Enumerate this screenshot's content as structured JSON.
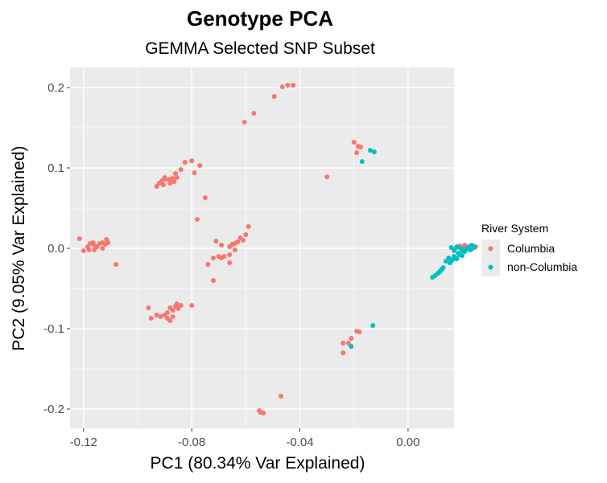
{
  "chart_data": {
    "type": "scatter",
    "title": "Genotype PCA",
    "subtitle": "GEMMA Selected SNP Subset",
    "xlabel": "PC1 (80.34% Var Explained)",
    "ylabel": "PC2 (9.05% Var Explained)",
    "xlim": [
      -0.125,
      0.017
    ],
    "ylim": [
      -0.224,
      0.225
    ],
    "x_ticks": [
      -0.12,
      -0.08,
      -0.04,
      0.0
    ],
    "x_tick_labels": [
      "-0.12",
      "-0.08",
      "-0.04",
      "0.00"
    ],
    "y_ticks": [
      -0.2,
      -0.1,
      0.0,
      0.1,
      0.2
    ],
    "y_tick_labels": [
      "-0.2",
      "-0.1",
      "0.0",
      "0.1",
      "0.2"
    ],
    "grid": true,
    "background": "#ebebeb",
    "legend": {
      "title": "River System",
      "placement": "right"
    },
    "series": [
      {
        "name": "Columbia",
        "color": "#F8766D",
        "points": [
          [
            -0.0445,
            0.203
          ],
          [
            -0.0425,
            0.203
          ],
          [
            -0.0465,
            0.201
          ],
          [
            -0.0495,
            0.189
          ],
          [
            -0.057,
            0.168
          ],
          [
            -0.0605,
            0.157
          ],
          [
            -0.02,
            0.132
          ],
          [
            -0.0185,
            0.127
          ],
          [
            -0.0175,
            0.126
          ],
          [
            -0.019,
            0.119
          ],
          [
            -0.03,
            0.089
          ],
          [
            -0.08,
            0.109
          ],
          [
            -0.0825,
            0.107
          ],
          [
            -0.077,
            0.103
          ],
          [
            -0.079,
            0.094
          ],
          [
            -0.084,
            0.098
          ],
          [
            -0.086,
            0.093
          ],
          [
            -0.0855,
            0.088
          ],
          [
            -0.087,
            0.087
          ],
          [
            -0.088,
            0.086
          ],
          [
            -0.0895,
            0.086
          ],
          [
            -0.091,
            0.084
          ],
          [
            -0.09,
            0.088
          ],
          [
            -0.092,
            0.081
          ],
          [
            -0.0905,
            0.079
          ],
          [
            -0.093,
            0.077
          ],
          [
            -0.088,
            0.081
          ],
          [
            -0.0865,
            0.083
          ],
          [
            -0.075,
            0.063
          ],
          [
            -0.078,
            0.036
          ],
          [
            -0.1215,
            0.012
          ],
          [
            -0.1185,
            0.002
          ],
          [
            -0.1175,
            0.006
          ],
          [
            -0.1165,
            0.007
          ],
          [
            -0.116,
            0.004
          ],
          [
            -0.115,
            0.002
          ],
          [
            -0.114,
            0.006
          ],
          [
            -0.113,
            0.007
          ],
          [
            -0.112,
            0.005
          ],
          [
            -0.111,
            0.007
          ],
          [
            -0.1115,
            0.011
          ],
          [
            -0.113,
            0.0
          ],
          [
            -0.116,
            -0.002
          ],
          [
            -0.118,
            -0.002
          ],
          [
            -0.12,
            -0.003
          ],
          [
            -0.108,
            -0.02
          ],
          [
            -0.059,
            0.027
          ],
          [
            -0.06,
            0.017
          ],
          [
            -0.062,
            0.013
          ],
          [
            -0.061,
            0.01
          ],
          [
            -0.063,
            0.008
          ],
          [
            -0.064,
            0.006
          ],
          [
            -0.065,
            0.005
          ],
          [
            -0.066,
            0.002
          ],
          [
            -0.064,
            -0.002
          ],
          [
            -0.066,
            -0.008
          ],
          [
            -0.068,
            -0.01
          ],
          [
            -0.069,
            -0.012
          ],
          [
            -0.07,
            -0.01
          ],
          [
            -0.072,
            -0.012
          ],
          [
            -0.074,
            -0.02
          ],
          [
            -0.071,
            0.009
          ],
          [
            -0.069,
            0.004
          ],
          [
            -0.066,
            -0.018
          ],
          [
            -0.072,
            -0.04
          ],
          [
            -0.084,
            -0.071
          ],
          [
            -0.0855,
            -0.069
          ],
          [
            -0.088,
            -0.074
          ],
          [
            -0.087,
            -0.077
          ],
          [
            -0.089,
            -0.08
          ],
          [
            -0.09,
            -0.083
          ],
          [
            -0.0915,
            -0.085
          ],
          [
            -0.093,
            -0.083
          ],
          [
            -0.095,
            -0.087
          ],
          [
            -0.089,
            -0.087
          ],
          [
            -0.088,
            -0.09
          ],
          [
            -0.087,
            -0.085
          ],
          [
            -0.086,
            -0.072
          ],
          [
            -0.085,
            -0.075
          ],
          [
            -0.096,
            -0.074
          ],
          [
            -0.08,
            -0.071
          ],
          [
            -0.018,
            -0.104
          ],
          [
            -0.019,
            -0.103
          ],
          [
            -0.021,
            -0.112
          ],
          [
            -0.024,
            -0.118
          ],
          [
            -0.022,
            -0.118
          ],
          [
            -0.024,
            -0.13
          ],
          [
            -0.047,
            -0.184
          ],
          [
            -0.055,
            -0.202
          ],
          [
            -0.0545,
            -0.204
          ],
          [
            -0.0535,
            -0.205
          ],
          [
            0.024,
            0.003
          ],
          [
            0.023,
            0.001
          ],
          [
            0.022,
            0.0
          ],
          [
            0.02,
            0.002
          ],
          [
            0.021,
            0.004
          ],
          [
            0.018,
            0.001
          ],
          [
            0.017,
            -0.003
          ],
          [
            0.025,
            0.002
          ],
          [
            0.0235,
            -0.001
          ],
          [
            0.019,
            0.003
          ]
        ]
      },
      {
        "name": "non-Columbia",
        "color": "#00BFC4",
        "points": [
          [
            -0.014,
            0.122
          ],
          [
            -0.0125,
            0.12
          ],
          [
            -0.017,
            0.108
          ],
          [
            -0.013,
            -0.096
          ],
          [
            -0.021,
            -0.122
          ],
          [
            0.016,
            0.001
          ],
          [
            0.017,
            -0.002
          ],
          [
            0.018,
            0.002
          ],
          [
            0.0195,
            0.0
          ],
          [
            0.02,
            -0.003
          ],
          [
            0.0215,
            -0.001
          ],
          [
            0.0225,
            0.002
          ],
          [
            0.0235,
            0.004
          ],
          [
            0.0245,
            0.001
          ],
          [
            0.024,
            0.003
          ],
          [
            0.023,
            -0.002
          ],
          [
            0.021,
            -0.004
          ],
          [
            0.019,
            -0.008
          ],
          [
            0.0175,
            -0.012
          ],
          [
            0.0165,
            -0.014
          ],
          [
            0.016,
            -0.015
          ],
          [
            0.015,
            -0.012
          ],
          [
            0.017,
            -0.01
          ],
          [
            0.0185,
            -0.006
          ],
          [
            0.02,
            -0.009
          ],
          [
            0.018,
            -0.013
          ],
          [
            0.0155,
            -0.018
          ],
          [
            0.014,
            -0.016
          ],
          [
            0.013,
            -0.024
          ],
          [
            0.012,
            -0.028
          ],
          [
            0.011,
            -0.031
          ],
          [
            0.01,
            -0.034
          ],
          [
            0.009,
            -0.036
          ],
          [
            0.0115,
            -0.03
          ],
          [
            0.0125,
            -0.026
          ]
        ]
      }
    ]
  }
}
